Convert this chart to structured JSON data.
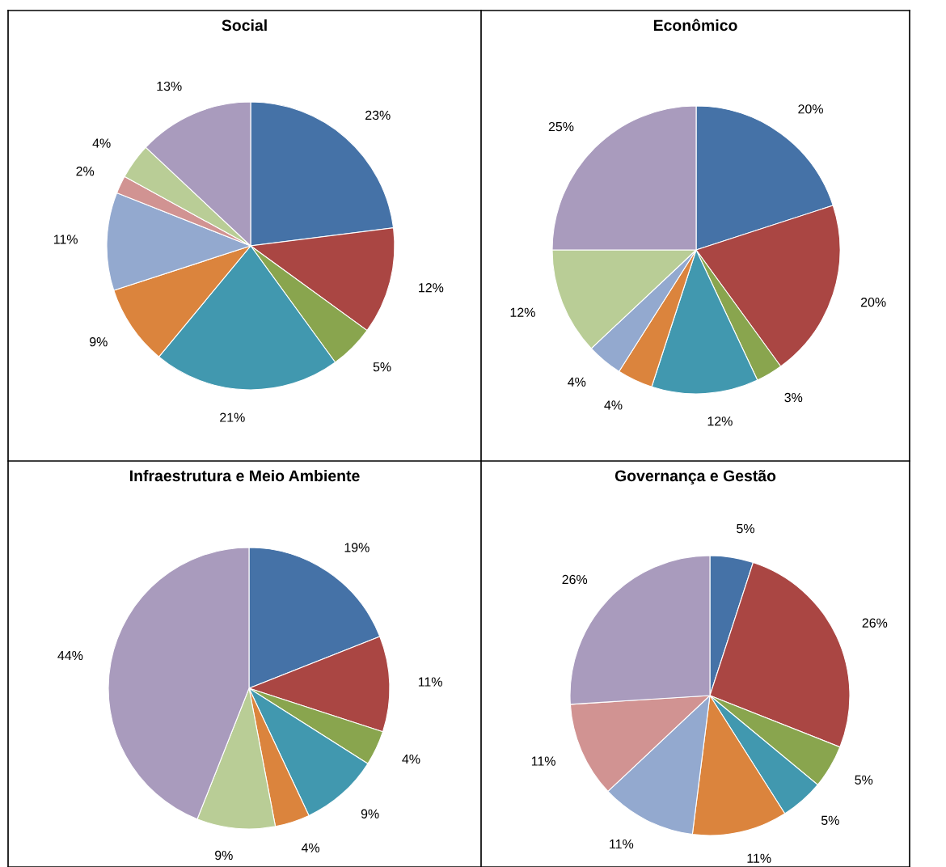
{
  "chart_data": [
    {
      "type": "pie",
      "title": "Social",
      "categories": [
        null,
        null,
        null,
        null,
        null,
        null,
        null,
        null,
        null
      ],
      "values": [
        23,
        12,
        5,
        21,
        9,
        11,
        2,
        4,
        13
      ],
      "colors": [
        "#4572a7",
        "#aa4643",
        "#89a54e",
        "#4198af",
        "#db843d",
        "#93a9cf",
        "#d19392",
        "#b9cd96",
        "#a99bbd"
      ],
      "value_labels": [
        "23%",
        "12%",
        "5%",
        "21%",
        "9%",
        "11%",
        "2%",
        "4%",
        "13%"
      ],
      "legend": false
    },
    {
      "type": "pie",
      "title": "Econômico",
      "categories": [
        null,
        null,
        null,
        null,
        null,
        null,
        null,
        null
      ],
      "values": [
        20,
        20,
        3,
        12,
        4,
        4,
        12,
        25
      ],
      "colors": [
        "#4572a7",
        "#aa4643",
        "#89a54e",
        "#4198af",
        "#db843d",
        "#93a9cf",
        "#b9cd96",
        "#a99bbd"
      ],
      "value_labels": [
        "20%",
        "20%",
        "3%",
        "12%",
        "4%",
        "4%",
        "12%",
        "25%"
      ],
      "legend": false
    },
    {
      "type": "pie",
      "title": "Infraestrutura e Meio Ambiente",
      "categories": [
        null,
        null,
        null,
        null,
        null,
        null,
        null
      ],
      "values": [
        19,
        11,
        4,
        9,
        4,
        9,
        44
      ],
      "colors": [
        "#4572a7",
        "#aa4643",
        "#89a54e",
        "#4198af",
        "#db843d",
        "#b9cd96",
        "#a99bbd"
      ],
      "value_labels": [
        "19%",
        "11%",
        "4%",
        "9%",
        "4%",
        "9%",
        "44%"
      ],
      "legend": false
    },
    {
      "type": "pie",
      "title": "Governança e Gestão",
      "categories": [
        null,
        null,
        null,
        null,
        null,
        null,
        null,
        null
      ],
      "values": [
        5,
        26,
        5,
        5,
        11,
        11,
        11,
        26
      ],
      "colors": [
        "#4572a7",
        "#aa4643",
        "#89a54e",
        "#4198af",
        "#db843d",
        "#93a9cf",
        "#d19392",
        "#a99bbd"
      ],
      "value_labels": [
        "5%",
        "26%",
        "5%",
        "5%",
        "11%",
        "11%",
        "11%",
        "26%"
      ],
      "legend": false
    }
  ]
}
